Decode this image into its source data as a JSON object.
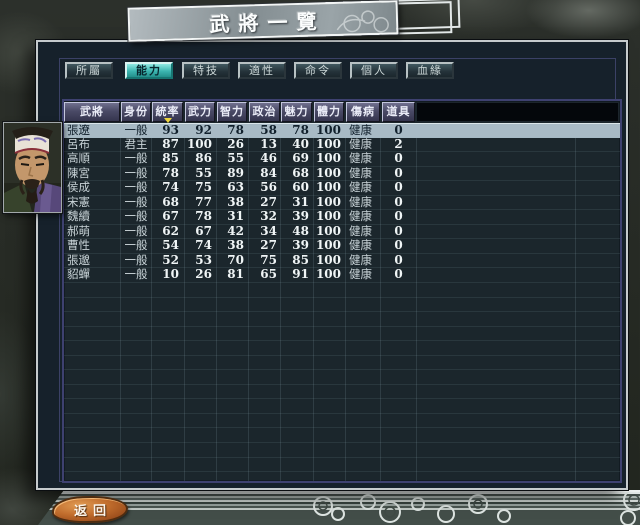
{
  "window": {
    "title": "武將一覽"
  },
  "tabs": [
    {
      "label": "所屬",
      "selected": false
    },
    {
      "label": "能力",
      "selected": true
    },
    {
      "label": "特技",
      "selected": false
    },
    {
      "label": "適性",
      "selected": false
    },
    {
      "label": "命令",
      "selected": false
    },
    {
      "label": "個人",
      "selected": false
    },
    {
      "label": "血緣",
      "selected": false
    }
  ],
  "table": {
    "columns": [
      "武將",
      "身份",
      "統率",
      "武力",
      "智力",
      "政治",
      "魅力",
      "體力",
      "傷病",
      "道具"
    ],
    "sort_column": "統率",
    "sort_icon": "triangle-down-icon",
    "rows": [
      {
        "name": "張遼",
        "status": "一般",
        "ldr": 93,
        "war": 92,
        "int": 78,
        "pol": 58,
        "chr": 78,
        "hp": 100,
        "health": "健康",
        "item": 0,
        "selected": true
      },
      {
        "name": "呂布",
        "status": "君主",
        "ldr": 87,
        "war": 100,
        "int": 26,
        "pol": 13,
        "chr": 40,
        "hp": 100,
        "health": "健康",
        "item": 2,
        "selected": false
      },
      {
        "name": "高順",
        "status": "一般",
        "ldr": 85,
        "war": 86,
        "int": 55,
        "pol": 46,
        "chr": 69,
        "hp": 100,
        "health": "健康",
        "item": 0,
        "selected": false
      },
      {
        "name": "陳宮",
        "status": "一般",
        "ldr": 78,
        "war": 55,
        "int": 89,
        "pol": 84,
        "chr": 68,
        "hp": 100,
        "health": "健康",
        "item": 0,
        "selected": false
      },
      {
        "name": "侯成",
        "status": "一般",
        "ldr": 74,
        "war": 75,
        "int": 63,
        "pol": 56,
        "chr": 60,
        "hp": 100,
        "health": "健康",
        "item": 0,
        "selected": false
      },
      {
        "name": "宋憲",
        "status": "一般",
        "ldr": 68,
        "war": 77,
        "int": 38,
        "pol": 27,
        "chr": 31,
        "hp": 100,
        "health": "健康",
        "item": 0,
        "selected": false
      },
      {
        "name": "魏續",
        "status": "一般",
        "ldr": 67,
        "war": 78,
        "int": 31,
        "pol": 32,
        "chr": 39,
        "hp": 100,
        "health": "健康",
        "item": 0,
        "selected": false
      },
      {
        "name": "郝萌",
        "status": "一般",
        "ldr": 62,
        "war": 67,
        "int": 42,
        "pol": 34,
        "chr": 48,
        "hp": 100,
        "health": "健康",
        "item": 0,
        "selected": false
      },
      {
        "name": "曹性",
        "status": "一般",
        "ldr": 54,
        "war": 74,
        "int": 38,
        "pol": 27,
        "chr": 39,
        "hp": 100,
        "health": "健康",
        "item": 0,
        "selected": false
      },
      {
        "name": "張邈",
        "status": "一般",
        "ldr": 52,
        "war": 53,
        "int": 70,
        "pol": 75,
        "chr": 85,
        "hp": 100,
        "health": "健康",
        "item": 0,
        "selected": false
      },
      {
        "name": "貂蟬",
        "status": "一般",
        "ldr": 10,
        "war": 26,
        "int": 81,
        "pol": 65,
        "chr": 91,
        "hp": 100,
        "health": "健康",
        "item": 0,
        "selected": false
      }
    ]
  },
  "portrait": {
    "officer": "張遼"
  },
  "buttons": {
    "back": "返回"
  },
  "colors": {
    "active_tab": "#3cb5b0",
    "selected_row": "#a8bac5",
    "header_cell": "#4a4a66",
    "sort_marker": "#ecd43c",
    "back_button": "#c06c2c",
    "panel_bg": "#16212b"
  }
}
